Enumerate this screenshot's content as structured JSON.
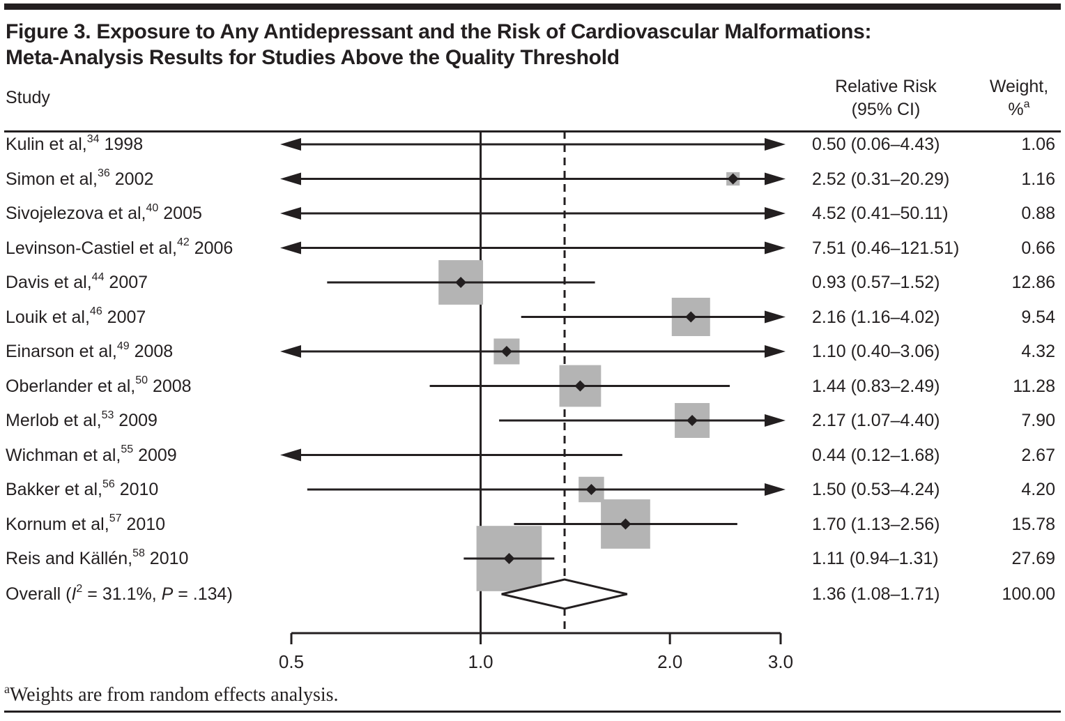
{
  "title": {
    "line1": "Figure 3. Exposure to Any Antidepressant and the Risk of Cardiovascular Malformations:",
    "line2": "Meta-Analysis Results for Studies Above the Quality Threshold"
  },
  "columns": {
    "study": "Study",
    "rr_line1": "Relative Risk",
    "rr_line2": "(95% CI)",
    "weight_line1": "Weight,",
    "weight_pct": "%",
    "weight_sup": "a"
  },
  "footnote": {
    "sup": "a",
    "text": "Weights are from random effects analysis."
  },
  "colors": {
    "ink": "#231f20",
    "square_gray": "#b4b4b4",
    "background": "#ffffff"
  },
  "chart_data": {
    "type": "forest",
    "x_scale": "log",
    "x_range": [
      0.5,
      3.0
    ],
    "x_ticks": [
      0.5,
      1.0,
      2.0,
      3.0
    ],
    "x_tick_labels": [
      "0.5",
      "1.0",
      "2.0",
      "3.0"
    ],
    "reference_line": 1.0,
    "overall_dashed_line": 1.36,
    "studies": [
      {
        "label_parts": [
          {
            "t": "t",
            "v": "Kulin et al,"
          },
          {
            "t": "sup",
            "v": "34"
          },
          {
            "t": "t",
            "v": " 1998"
          }
        ],
        "rr": 0.5,
        "lo": 0.06,
        "hi": 4.43,
        "rr_ci_text": "0.50 (0.06–4.43)",
        "weight": 1.06,
        "weight_text": "1.06",
        "marker_visible": false
      },
      {
        "label_parts": [
          {
            "t": "t",
            "v": "Simon et al,"
          },
          {
            "t": "sup",
            "v": "36"
          },
          {
            "t": "t",
            "v": " 2002"
          }
        ],
        "rr": 2.52,
        "lo": 0.31,
        "hi": 20.29,
        "rr_ci_text": "2.52 (0.31–20.29)",
        "weight": 1.16,
        "weight_text": "1.16",
        "marker_visible": true
      },
      {
        "label_parts": [
          {
            "t": "t",
            "v": "Sivojelezova et al,"
          },
          {
            "t": "sup",
            "v": "40"
          },
          {
            "t": "t",
            "v": " 2005"
          }
        ],
        "rr": 4.52,
        "lo": 0.41,
        "hi": 50.11,
        "rr_ci_text": "4.52 (0.41–50.11)",
        "weight": 0.88,
        "weight_text": "0.88",
        "marker_visible": false
      },
      {
        "label_parts": [
          {
            "t": "t",
            "v": "Levinson-Castiel et al,"
          },
          {
            "t": "sup",
            "v": "42"
          },
          {
            "t": "t",
            "v": " 2006"
          }
        ],
        "rr": 7.51,
        "lo": 0.46,
        "hi": 121.51,
        "rr_ci_text": "7.51 (0.46–121.51)",
        "weight": 0.66,
        "weight_text": "0.66",
        "marker_visible": false
      },
      {
        "label_parts": [
          {
            "t": "t",
            "v": "Davis et al,"
          },
          {
            "t": "sup",
            "v": "44"
          },
          {
            "t": "t",
            "v": " 2007"
          }
        ],
        "rr": 0.93,
        "lo": 0.57,
        "hi": 1.52,
        "rr_ci_text": "0.93 (0.57–1.52)",
        "weight": 12.86,
        "weight_text": "12.86",
        "marker_visible": true
      },
      {
        "label_parts": [
          {
            "t": "t",
            "v": "Louik et al,"
          },
          {
            "t": "sup",
            "v": "46"
          },
          {
            "t": "t",
            "v": " 2007"
          }
        ],
        "rr": 2.16,
        "lo": 1.16,
        "hi": 4.02,
        "rr_ci_text": "2.16 (1.16–4.02)",
        "weight": 9.54,
        "weight_text": "9.54",
        "marker_visible": true
      },
      {
        "label_parts": [
          {
            "t": "t",
            "v": "Einarson et al,"
          },
          {
            "t": "sup",
            "v": "49"
          },
          {
            "t": "t",
            "v": " 2008"
          }
        ],
        "rr": 1.1,
        "lo": 0.4,
        "hi": 3.06,
        "rr_ci_text": "1.10 (0.40–3.06)",
        "weight": 4.32,
        "weight_text": "4.32",
        "marker_visible": true
      },
      {
        "label_parts": [
          {
            "t": "t",
            "v": "Oberlander et al,"
          },
          {
            "t": "sup",
            "v": "50"
          },
          {
            "t": "t",
            "v": " 2008"
          }
        ],
        "rr": 1.44,
        "lo": 0.83,
        "hi": 2.49,
        "rr_ci_text": "1.44 (0.83–2.49)",
        "weight": 11.28,
        "weight_text": "11.28",
        "marker_visible": true
      },
      {
        "label_parts": [
          {
            "t": "t",
            "v": "Merlob et al,"
          },
          {
            "t": "sup",
            "v": "53"
          },
          {
            "t": "t",
            "v": " 2009"
          }
        ],
        "rr": 2.17,
        "lo": 1.07,
        "hi": 4.4,
        "rr_ci_text": "2.17 (1.07–4.40)",
        "weight": 7.9,
        "weight_text": "7.90",
        "marker_visible": true
      },
      {
        "label_parts": [
          {
            "t": "t",
            "v": "Wichman et al,"
          },
          {
            "t": "sup",
            "v": "55"
          },
          {
            "t": "t",
            "v": " 2009"
          }
        ],
        "rr": 0.44,
        "lo": 0.12,
        "hi": 1.68,
        "rr_ci_text": "0.44 (0.12–1.68)",
        "weight": 2.67,
        "weight_text": "2.67",
        "marker_visible": false
      },
      {
        "label_parts": [
          {
            "t": "t",
            "v": "Bakker et al,"
          },
          {
            "t": "sup",
            "v": "56"
          },
          {
            "t": "t",
            "v": " 2010"
          }
        ],
        "rr": 1.5,
        "lo": 0.53,
        "hi": 4.24,
        "rr_ci_text": "1.50 (0.53–4.24)",
        "weight": 4.2,
        "weight_text": "4.20",
        "marker_visible": true
      },
      {
        "label_parts": [
          {
            "t": "t",
            "v": "Kornum et al,"
          },
          {
            "t": "sup",
            "v": "57"
          },
          {
            "t": "t",
            "v": " 2010"
          }
        ],
        "rr": 1.7,
        "lo": 1.13,
        "hi": 2.56,
        "rr_ci_text": "1.70 (1.13–2.56)",
        "weight": 15.78,
        "weight_text": "15.78",
        "marker_visible": true
      },
      {
        "label_parts": [
          {
            "t": "t",
            "v": "Reis and Källén,"
          },
          {
            "t": "sup",
            "v": "58"
          },
          {
            "t": "t",
            "v": " 2010"
          }
        ],
        "rr": 1.11,
        "lo": 0.94,
        "hi": 1.31,
        "rr_ci_text": "1.11 (0.94–1.31)",
        "weight": 27.69,
        "weight_text": "27.69",
        "marker_visible": true
      }
    ],
    "overall": {
      "label_parts": [
        {
          "t": "t",
          "v": "Overall ("
        },
        {
          "t": "i",
          "v": "I"
        },
        {
          "t": "sup",
          "v": "2"
        },
        {
          "t": "t",
          "v": " = 31.1%, "
        },
        {
          "t": "i",
          "v": "P"
        },
        {
          "t": "t",
          "v": " = .134)"
        }
      ],
      "rr": 1.36,
      "lo": 1.08,
      "hi": 1.71,
      "rr_ci_text": "1.36 (1.08–1.71)",
      "weight": 100.0,
      "weight_text": "100.00"
    }
  }
}
